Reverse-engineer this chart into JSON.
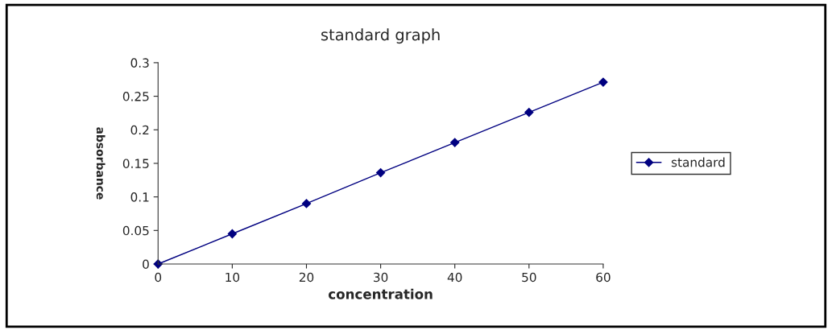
{
  "chart_data": {
    "type": "line",
    "title": "standard graph",
    "xlabel": "concentration",
    "ylabel": "absorbance",
    "x": [
      0,
      10,
      20,
      30,
      40,
      50,
      60
    ],
    "series": [
      {
        "name": "standard",
        "color": "#000080",
        "values": [
          0,
          0.045,
          0.09,
          0.136,
          0.181,
          0.226,
          0.271
        ]
      }
    ],
    "xlim": [
      0,
      60
    ],
    "xticks": [
      0,
      10,
      20,
      30,
      40,
      50,
      60
    ],
    "ylim": [
      0,
      0.3
    ],
    "yticks": [
      0,
      0.05,
      0.1,
      0.15,
      0.2,
      0.25,
      0.3
    ],
    "grid": false,
    "legend": "right",
    "marker": "diamond",
    "line_style": "solid"
  }
}
